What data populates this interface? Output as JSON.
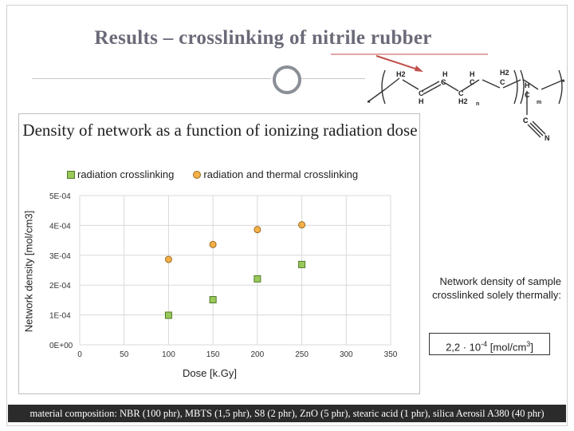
{
  "slide": {
    "title": "Results – crosslinking of nitrile rubber",
    "side_note": "Network density of sample crosslinked solely thermally:",
    "value_box": {
      "mantissa": "2,2 · 10",
      "exponent": "-4",
      "unit_open": " [mol/cm",
      "unit_exp": "3",
      "unit_close": "]"
    },
    "footer": "material composition: NBR (100 phr), MBTS (1,5 phr), S8 (2 phr), ZnO (5 phr), stearic acid (1 phr), silica Aerosil A380 (40 phr)",
    "molecule_labels": [
      "H2",
      "H",
      "C",
      "H",
      "C",
      "C",
      "H",
      "C",
      "H2",
      "H2",
      "H",
      "C",
      "C",
      "C",
      "n",
      "m",
      "C",
      "N",
      "*",
      "*"
    ]
  },
  "chart_data": {
    "type": "scatter",
    "title": "Density of network as a function of ionizing radiation dose",
    "xlabel": "Dose [k.Gy]",
    "ylabel": "Network density [mol/cm3]",
    "xlim": [
      0,
      350
    ],
    "ylim": [
      0,
      0.0005
    ],
    "x_ticks": [
      "0",
      "50",
      "100",
      "150",
      "200",
      "250",
      "300",
      "350"
    ],
    "x_tick_values": [
      0,
      50,
      100,
      150,
      200,
      250,
      300,
      350
    ],
    "y_ticks": [
      "0E+00",
      "1E-04",
      "2E-04",
      "3E-04",
      "4E-04",
      "5E-04"
    ],
    "y_tick_values": [
      0,
      0.0001,
      0.0002,
      0.0003,
      0.0004,
      0.0005
    ],
    "grid": true,
    "legend_position": "top",
    "series": [
      {
        "name": "radiation crosslinking",
        "marker": "square",
        "color": "#9bc85a",
        "edge": "#4e7a28",
        "x": [
          100,
          150,
          200,
          250
        ],
        "y": [
          9.9e-05,
          0.000151,
          0.000221,
          0.000269
        ]
      },
      {
        "name": "radiation and thermal crosslinking",
        "marker": "circle",
        "color": "#f5b04a",
        "edge": "#9a6a1e",
        "x": [
          100,
          150,
          200,
          250
        ],
        "y": [
          0.000286,
          0.000336,
          0.000386,
          0.000402
        ]
      }
    ]
  }
}
